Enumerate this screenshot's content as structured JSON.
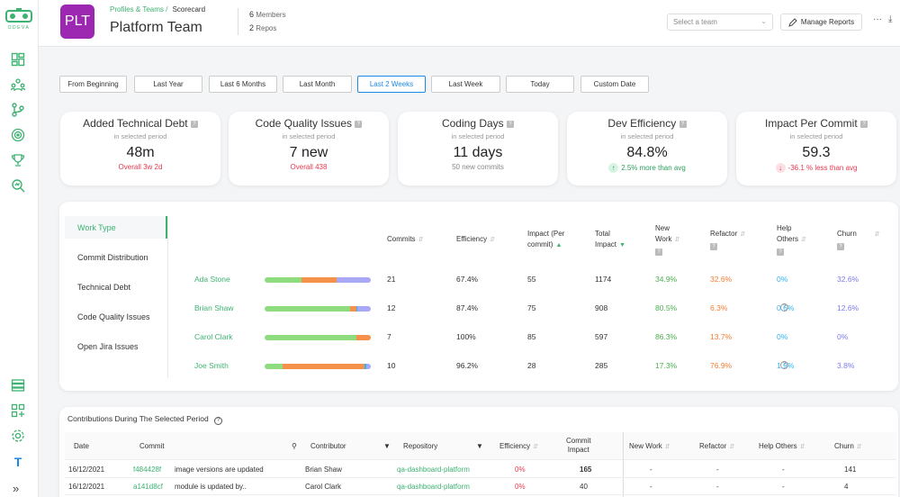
{
  "brand": {
    "logo_text": "ODEVA",
    "accent": "#3cb371",
    "sidebar_bottom_badge": "T"
  },
  "sidebar": {
    "top_icons": [
      "dashboard-icon",
      "teams-icon",
      "git-branch-icon",
      "target-icon",
      "trophy-icon",
      "search-analytics-icon"
    ],
    "bottom_icons": [
      "database-icon",
      "add-widget-icon",
      "settings-icon"
    ],
    "expand_label": "»"
  },
  "header": {
    "avatar": "PLT",
    "breadcrumb_parent": "Profiles & Teams /",
    "breadcrumb_current": "Scorecard",
    "title": "Platform Team",
    "members_count": "6",
    "members_label": "Members",
    "repos_count": "2",
    "repos_label": "Repos",
    "team_select_placeholder": "Select a team",
    "manage_reports_label": "Manage Reports",
    "more_label": "···",
    "download_label": "⤓"
  },
  "filters": [
    "From Beginning",
    "Last Year",
    "Last 6 Months",
    "Last Month",
    "Last 2 Weeks",
    "Last Week",
    "Today",
    "Custom Date"
  ],
  "active_filter": "Last 2 Weeks",
  "kpis": [
    {
      "title": "Added Technical Debt",
      "subtitle": "in selected period",
      "value": "48m",
      "footer": "Overall 3w 2d",
      "footer_style": "red"
    },
    {
      "title": "Code Quality Issues",
      "subtitle": "in selected period",
      "value": "7 new",
      "footer": "Overall 438",
      "footer_style": "red"
    },
    {
      "title": "Coding Days",
      "subtitle": "in selected period",
      "value": "11 days",
      "footer": "50 new commits",
      "footer_style": "grey"
    },
    {
      "title": "Dev Efficiency",
      "subtitle": "in selected period",
      "value": "84.8%",
      "footer": "2.5% more than avg",
      "footer_style": "green"
    },
    {
      "title": "Impact Per Commit",
      "subtitle": "in selected period",
      "value": "59.3",
      "footer": "-36.1 % less than avg",
      "footer_style": "red"
    }
  ],
  "work_type": {
    "tabs": [
      "Work Type",
      "Commit Distribution",
      "Technical Debt",
      "Code Quality Issues",
      "Open Jira Issues"
    ],
    "active_tab": "Work Type",
    "columns": {
      "commits": "Commits",
      "efficiency": "Efficiency",
      "impact_line1": "Impact (Per",
      "impact_line2": "commit)",
      "total_line1": "Total",
      "total_line2": "Impact",
      "new_line1": "New",
      "new_line2": "Work",
      "refactor": "Refactor",
      "help_line1": "Help",
      "help_line2": "Others",
      "churn": "Churn"
    },
    "colors": {
      "new_work": "#8fdc7e",
      "refactor": "#f5914a",
      "help_others": "#29b6f6",
      "churn": "#a8a8f5"
    },
    "rows": [
      {
        "name": "Ada Stone",
        "commits": "21",
        "efficiency": "67.4%",
        "impact": "55",
        "total": "1174",
        "new_work": "34.9%",
        "refactor": "32.6%",
        "help": "0%",
        "churn": "32.6%",
        "help_info": false,
        "bar": [
          34.9,
          32.6,
          0,
          32.6
        ]
      },
      {
        "name": "Brian Shaw",
        "commits": "12",
        "efficiency": "87.4%",
        "impact": "75",
        "total": "908",
        "new_work": "80.5%",
        "refactor": "6.3%",
        "help": "0.6%",
        "churn": "12.6%",
        "help_info": true,
        "bar": [
          80.5,
          6.3,
          0.6,
          12.6
        ]
      },
      {
        "name": "Carol Clark",
        "commits": "7",
        "efficiency": "100%",
        "impact": "85",
        "total": "597",
        "new_work": "86.3%",
        "refactor": "13.7%",
        "help": "0%",
        "churn": "0%",
        "help_info": false,
        "bar": [
          86.3,
          13.7,
          0,
          0
        ]
      },
      {
        "name": "Joe Smith",
        "commits": "10",
        "efficiency": "96.2%",
        "impact": "28",
        "total": "285",
        "new_work": "17.3%",
        "refactor": "76.9%",
        "help": "1.9%",
        "churn": "3.8%",
        "help_info": true,
        "bar": [
          17.3,
          76.9,
          1.9,
          3.8
        ]
      }
    ]
  },
  "contributions": {
    "title": "Contributions During The Selected Period",
    "columns": {
      "date": "Date",
      "commit": "Commit",
      "contributor": "Contributor",
      "repository": "Repository",
      "efficiency": "Efficiency",
      "impact_line1": "Commit",
      "impact_line2": "Impact",
      "new_work": "New Work",
      "refactor": "Refactor",
      "help_others": "Help Others",
      "churn": "Churn"
    },
    "rows": [
      {
        "date": "16/12/2021",
        "hash": "f484428f",
        "message": "image versions are updated",
        "contributor": "Brian Shaw",
        "repo": "qa-dashboard-platform",
        "efficiency": "0%",
        "impact": "165",
        "impact_bold": true,
        "new_work": "-",
        "refactor": "-",
        "help": "-",
        "churn": "141"
      },
      {
        "date": "16/12/2021",
        "hash": "a141d8cf",
        "message": "module is updated by..",
        "contributor": "Carol Clark",
        "repo": "qa-dashboard-platform",
        "efficiency": "0%",
        "impact": "40",
        "impact_bold": false,
        "new_work": "-",
        "refactor": "-",
        "help": "-",
        "churn": "4"
      }
    ]
  }
}
